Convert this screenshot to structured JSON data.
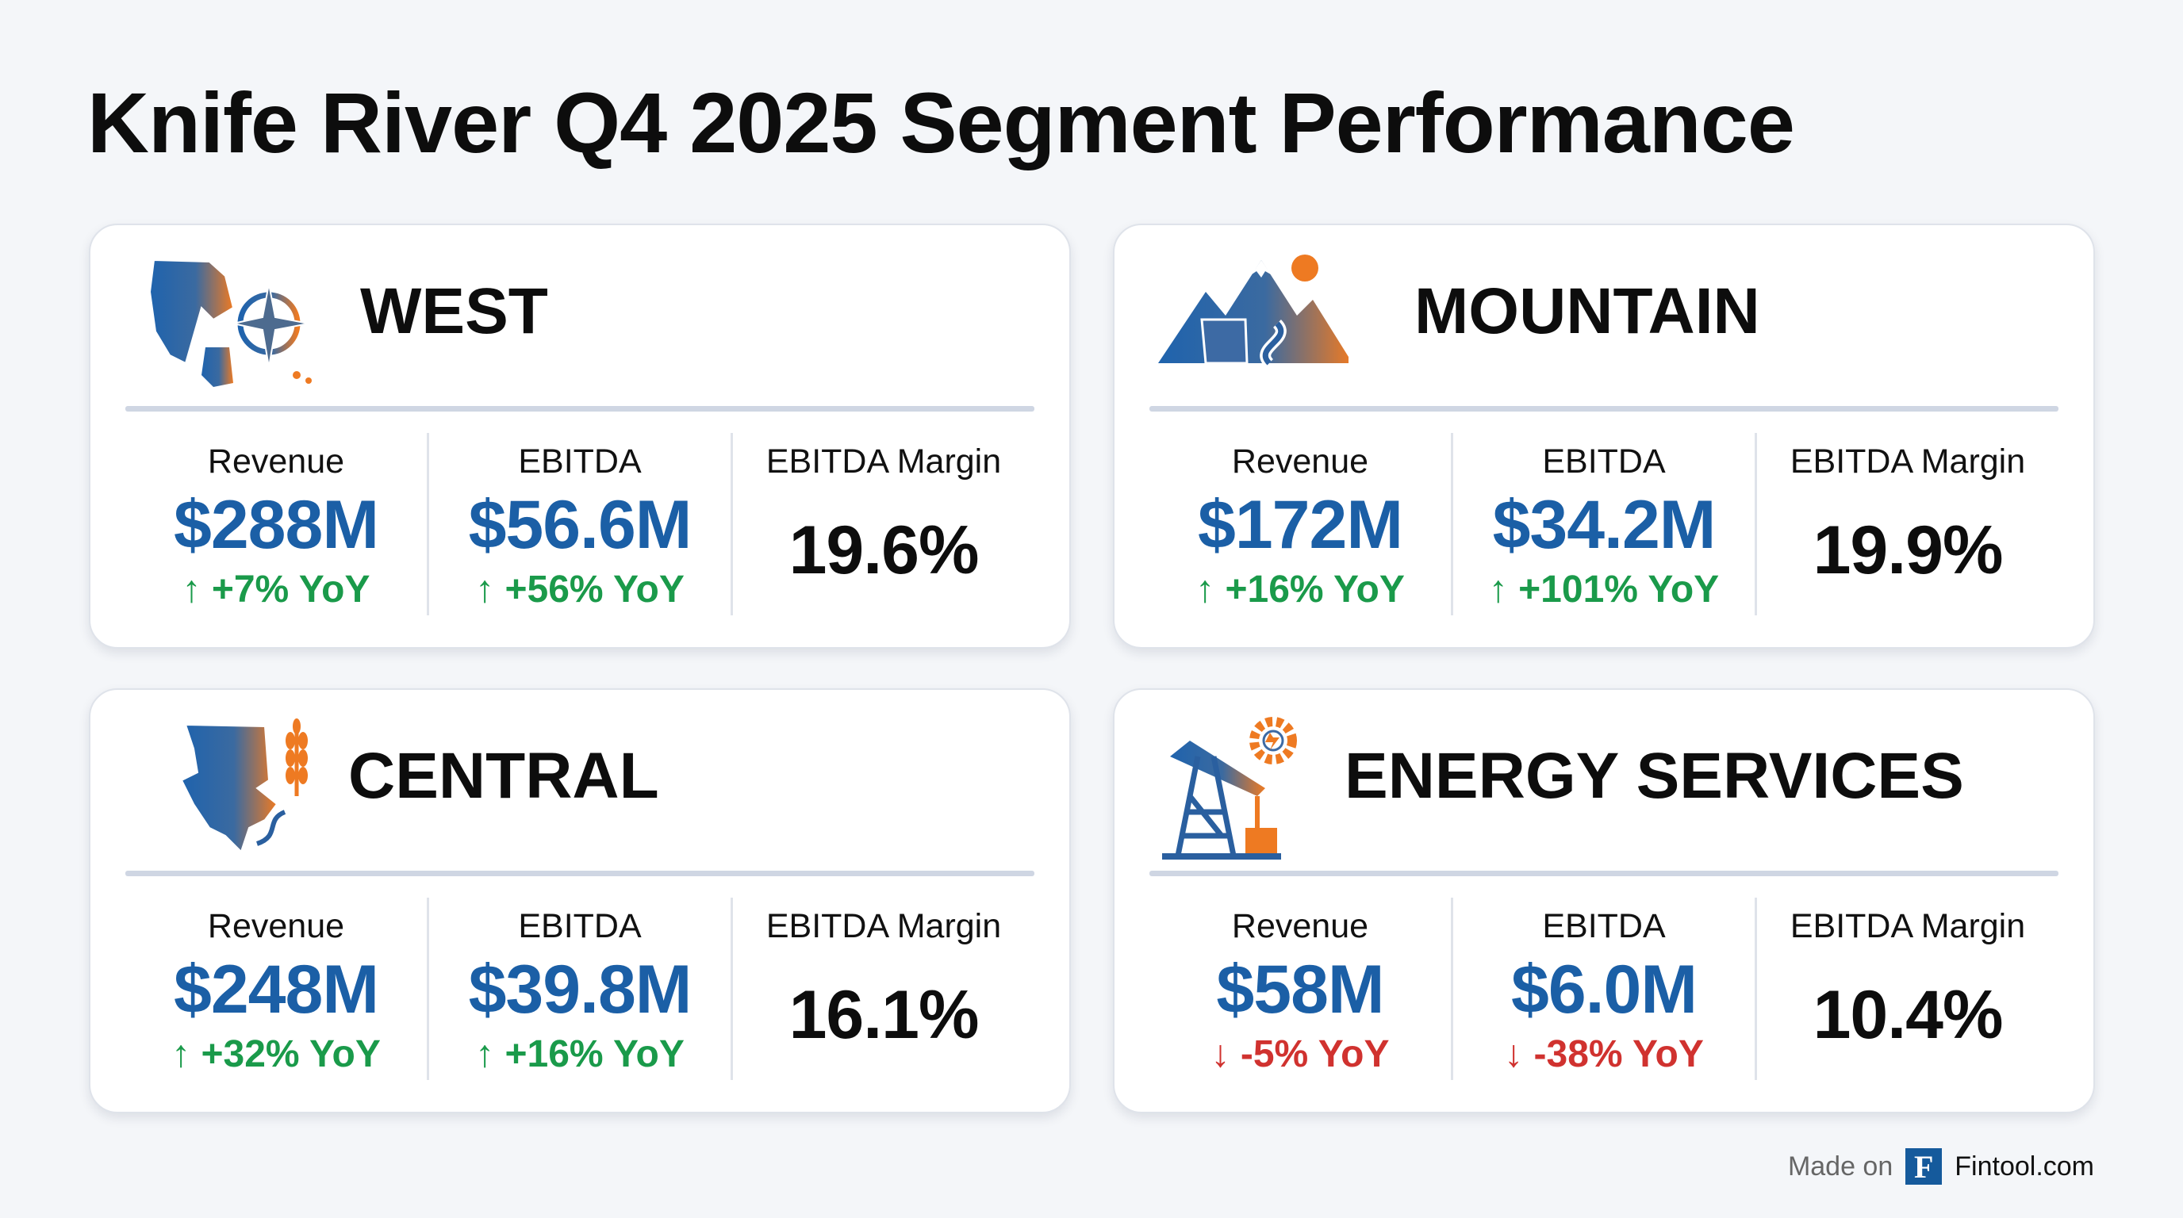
{
  "title": "Knife River Q4 2025 Segment Performance",
  "colors": {
    "value_blue": "#1b5fa6",
    "up_green": "#1a9a4a",
    "down_red": "#d0322f",
    "icon_blue": "#1f63ad",
    "icon_orange": "#ee7a22"
  },
  "segments": [
    {
      "name": "WEST",
      "icon": "west-map-compass-icon",
      "metrics": [
        {
          "label": "Revenue",
          "value": "$288M",
          "yoy": "+7% YoY",
          "direction": "up"
        },
        {
          "label": "EBITDA",
          "value": "$56.6M",
          "yoy": "+56% YoY",
          "direction": "up"
        },
        {
          "label": "EBITDA Margin",
          "value": "19.6%"
        }
      ]
    },
    {
      "name": "MOUNTAIN",
      "icon": "mountain-river-icon",
      "metrics": [
        {
          "label": "Revenue",
          "value": "$172M",
          "yoy": "+16% YoY",
          "direction": "up"
        },
        {
          "label": "EBITDA",
          "value": "$34.2M",
          "yoy": "+101% YoY",
          "direction": "up"
        },
        {
          "label": "EBITDA Margin",
          "value": "19.9%"
        }
      ]
    },
    {
      "name": "CENTRAL",
      "icon": "central-map-wheat-icon",
      "metrics": [
        {
          "label": "Revenue",
          "value": "$248M",
          "yoy": "+32% YoY",
          "direction": "up"
        },
        {
          "label": "EBITDA",
          "value": "$39.8M",
          "yoy": "+16% YoY",
          "direction": "up"
        },
        {
          "label": "EBITDA Margin",
          "value": "16.1%"
        }
      ]
    },
    {
      "name": "ENERGY SERVICES",
      "icon": "oil-pump-gear-icon",
      "metrics": [
        {
          "label": "Revenue",
          "value": "$58M",
          "yoy": "-5% YoY",
          "direction": "down"
        },
        {
          "label": "EBITDA",
          "value": "$6.0M",
          "yoy": "-38% YoY",
          "direction": "down"
        },
        {
          "label": "EBITDA Margin",
          "value": "10.4%"
        }
      ]
    }
  ],
  "footer": {
    "made_on": "Made on",
    "logo_letter": "F",
    "site": "Fintool.com"
  }
}
